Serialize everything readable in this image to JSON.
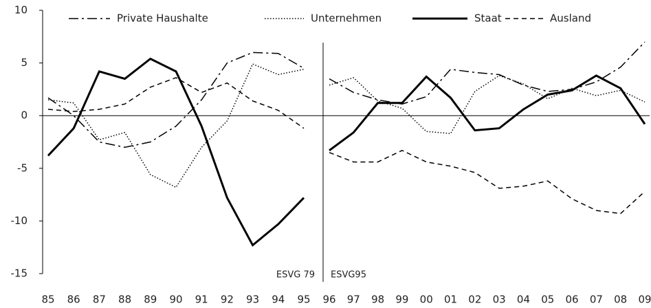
{
  "chart_data": [
    {
      "type": "line",
      "categories": [
        "85",
        "86",
        "87",
        "88",
        "89",
        "90",
        "91",
        "92",
        "93",
        "94",
        "95"
      ],
      "ylim": [
        -15,
        10
      ],
      "yticks": [
        -15,
        -10,
        -5,
        0,
        5,
        10
      ],
      "annotation": "ESVG 79",
      "series": [
        {
          "name": "Private Haushalte",
          "color": "#000000",
          "dash": "dashdot",
          "values": [
            1.7,
            0.0,
            -2.5,
            -3.0,
            -2.5,
            -1.0,
            1.5,
            5.0,
            6.0,
            5.9,
            4.5
          ]
        },
        {
          "name": "Unternehmen",
          "color": "#000000",
          "dash": "dotted",
          "values": [
            1.5,
            1.2,
            -2.3,
            -1.6,
            -5.6,
            -6.8,
            -3.0,
            -0.5,
            4.9,
            3.9,
            4.4
          ]
        },
        {
          "name": "Staat",
          "color": "#000000",
          "dash": "solid",
          "values": [
            -3.8,
            -1.2,
            4.2,
            3.5,
            5.4,
            4.2,
            -1.0,
            -7.8,
            -12.3,
            -10.3,
            -7.8
          ]
        },
        {
          "name": "Ausland",
          "color": "#000000",
          "dash": "dashed",
          "values": [
            0.6,
            0.4,
            0.6,
            1.1,
            2.7,
            3.6,
            2.2,
            3.1,
            1.4,
            0.5,
            -1.2
          ]
        }
      ]
    },
    {
      "type": "line",
      "categories": [
        "96",
        "97",
        "98",
        "99",
        "00",
        "01",
        "02",
        "03",
        "04",
        "05",
        "06",
        "07",
        "08",
        "09"
      ],
      "ylim": [
        -15,
        10
      ],
      "annotation": "ESVG95",
      "series": [
        {
          "name": "Private Haushalte",
          "color": "#000000",
          "dash": "dashdot",
          "values": [
            3.5,
            2.2,
            1.5,
            1.1,
            1.8,
            4.4,
            4.1,
            3.9,
            2.9,
            2.3,
            2.5,
            3.2,
            4.6,
            7.0
          ]
        },
        {
          "name": "Unternehmen",
          "color": "#000000",
          "dash": "dotted",
          "values": [
            2.9,
            3.6,
            1.4,
            0.7,
            -1.5,
            -1.7,
            2.3,
            3.8,
            3.0,
            1.6,
            2.6,
            1.9,
            2.4,
            1.3
          ]
        },
        {
          "name": "Staat",
          "color": "#000000",
          "dash": "solid",
          "values": [
            -3.3,
            -1.6,
            1.2,
            1.2,
            3.7,
            1.7,
            -1.4,
            -1.2,
            0.6,
            2.0,
            2.4,
            3.8,
            2.6,
            -0.8
          ]
        },
        {
          "name": "Ausland",
          "color": "#000000",
          "dash": "dashed",
          "values": [
            -3.5,
            -4.4,
            -4.4,
            -3.3,
            -4.4,
            -4.8,
            -5.4,
            -6.9,
            -6.7,
            -6.2,
            -7.9,
            -9.0,
            -9.3,
            -7.2
          ]
        }
      ]
    }
  ]
}
